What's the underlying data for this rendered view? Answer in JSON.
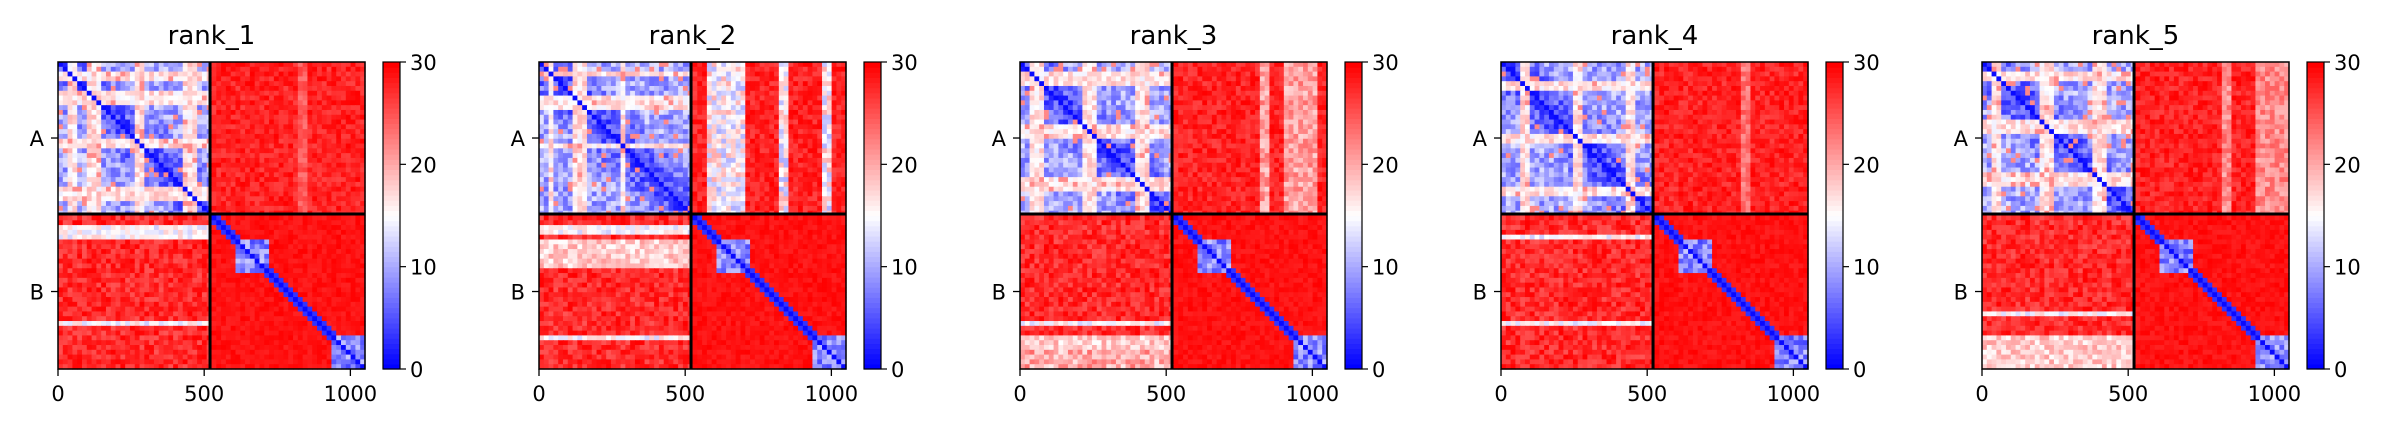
{
  "figure": {
    "colors": {
      "low": "#0000ff",
      "mid": "#ffffff",
      "high": "#ff0000"
    }
  },
  "chart_data": [
    {
      "type": "heatmap",
      "title": "rank_1",
      "xticks": [
        0,
        500,
        1000
      ],
      "xlim": [
        0,
        1050
      ],
      "chains": [
        {
          "name": "A",
          "start": 0,
          "end": 520
        },
        {
          "name": "B",
          "start": 520,
          "end": 1050
        }
      ],
      "colorbar": {
        "ticks": [
          0,
          10,
          20,
          30
        ],
        "range": [
          0,
          30
        ],
        "cmap": "bwr"
      },
      "variant": {
        "bwhite": [
          [
            40,
            60
          ],
          [
            100,
            140
          ],
          [
            260,
            300
          ],
          [
            420,
            470
          ]
        ],
        "ab_bands": [
          [
            820,
            860
          ]
        ],
        "ab_light": 0.2,
        "b_pale_block": null,
        "bdiag": [
          0.1,
          0.15,
          0.7
        ]
      }
    },
    {
      "type": "heatmap",
      "title": "rank_2",
      "xticks": [
        0,
        500,
        1000
      ],
      "xlim": [
        0,
        1050
      ],
      "chains": [
        {
          "name": "A",
          "start": 0,
          "end": 520
        },
        {
          "name": "B",
          "start": 520,
          "end": 1050
        }
      ],
      "colorbar": {
        "ticks": [
          0,
          10,
          20,
          30
        ],
        "range": [
          0,
          30
        ],
        "cmap": "bwr"
      },
      "variant": {
        "bwhite": [
          [
            30,
            50
          ],
          [
            120,
            160
          ],
          [
            280,
            300
          ]
        ],
        "ab_bands": [
          [
            580,
            700
          ],
          [
            820,
            860
          ],
          [
            960,
            1000
          ]
        ],
        "ab_light": 0.55,
        "b_pale_block": [
          [
            0,
            520
          ],
          [
            600,
            700
          ]
        ],
        "bdiag": [
          0.1,
          0.8
        ]
      }
    },
    {
      "type": "heatmap",
      "title": "rank_3",
      "xticks": [
        0,
        500,
        1000
      ],
      "xlim": [
        0,
        1050
      ],
      "chains": [
        {
          "name": "A",
          "start": 0,
          "end": 520
        },
        {
          "name": "B",
          "start": 520,
          "end": 1050
        }
      ],
      "colorbar": {
        "ticks": [
          0,
          10,
          20,
          30
        ],
        "range": [
          0,
          30
        ],
        "cmap": "bwr"
      },
      "variant": {
        "bwhite": [
          [
            40,
            80
          ],
          [
            220,
            260
          ],
          [
            400,
            440
          ]
        ],
        "ab_bands": [
          [
            820,
            860
          ],
          [
            900,
            1020
          ]
        ],
        "ab_light": 0.35,
        "b_pale_block": [
          [
            0,
            520
          ],
          [
            940,
            1050
          ]
        ],
        "bdiag": [
          0.7
        ]
      }
    },
    {
      "type": "heatmap",
      "title": "rank_4",
      "xticks": [
        0,
        500,
        1000
      ],
      "xlim": [
        0,
        1050
      ],
      "chains": [
        {
          "name": "A",
          "start": 0,
          "end": 520
        },
        {
          "name": "B",
          "start": 520,
          "end": 1050
        }
      ],
      "colorbar": {
        "ticks": [
          0,
          10,
          20,
          30
        ],
        "range": [
          0,
          30
        ],
        "cmap": "bwr"
      },
      "variant": {
        "bwhite": [
          [
            60,
            100
          ],
          [
            240,
            280
          ],
          [
            420,
            460
          ]
        ],
        "ab_bands": [
          [
            820,
            860
          ]
        ],
        "ab_light": 0.25,
        "b_pale_block": null,
        "bdiag": [
          0.15,
          0.7
        ]
      }
    },
    {
      "type": "heatmap",
      "title": "rank_5",
      "xticks": [
        0,
        500,
        1000
      ],
      "xlim": [
        0,
        1050
      ],
      "chains": [
        {
          "name": "A",
          "start": 0,
          "end": 520
        },
        {
          "name": "B",
          "start": 520,
          "end": 1050
        }
      ],
      "colorbar": {
        "ticks": [
          0,
          10,
          20,
          30
        ],
        "range": [
          0,
          30
        ],
        "cmap": "bwr"
      },
      "variant": {
        "bwhite": [
          [
            40,
            70
          ],
          [
            200,
            240
          ],
          [
            380,
            420
          ]
        ],
        "ab_bands": [
          [
            820,
            860
          ],
          [
            940,
            1050
          ]
        ],
        "ab_light": 0.3,
        "b_pale_block": [
          [
            0,
            520
          ],
          [
            940,
            1050
          ]
        ],
        "bdiag": [
          0.65
        ]
      }
    }
  ]
}
